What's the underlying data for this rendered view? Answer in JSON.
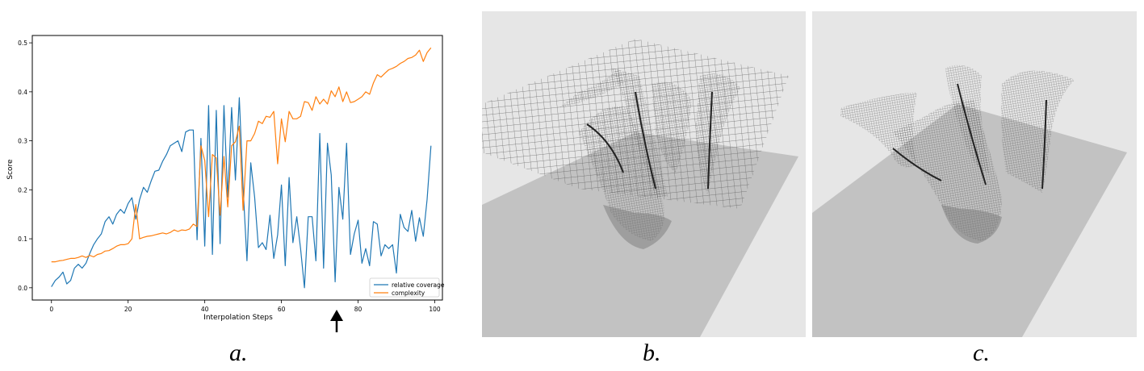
{
  "panel_labels": {
    "a": "a.",
    "b": "b.",
    "c": "c."
  },
  "chart_data": {
    "type": "line",
    "title": "",
    "xlabel": "Interpolation Steps",
    "ylabel": "Score",
    "xlim": [
      -5,
      102
    ],
    "ylim": [
      -0.025,
      0.515
    ],
    "xticks": [
      0,
      20,
      40,
      60,
      80,
      100
    ],
    "yticks": [
      0.0,
      0.1,
      0.2,
      0.3,
      0.4,
      0.5
    ],
    "ytick_labels": [
      "0.0",
      "0.1",
      "0.2",
      "0.3",
      "0.4",
      "0.5"
    ],
    "grid": false,
    "legend_position": "bottom-right",
    "marker_annotation": {
      "x": 75,
      "symbol": "arrow-up"
    },
    "series": [
      {
        "name": "relative coverage",
        "color": "#1f77b4",
        "x": [
          0,
          1,
          2,
          3,
          4,
          5,
          6,
          7,
          8,
          9,
          10,
          11,
          12,
          13,
          14,
          15,
          16,
          17,
          18,
          19,
          20,
          21,
          22,
          23,
          24,
          25,
          26,
          27,
          28,
          29,
          30,
          31,
          32,
          33,
          34,
          35,
          36,
          37,
          38,
          39,
          40,
          41,
          42,
          43,
          44,
          45,
          46,
          47,
          48,
          49,
          50,
          51,
          52,
          53,
          54,
          55,
          56,
          57,
          58,
          59,
          60,
          61,
          62,
          63,
          64,
          65,
          66,
          67,
          68,
          69,
          70,
          71,
          72,
          73,
          74,
          75,
          76,
          77,
          78,
          79,
          80,
          81,
          82,
          83,
          84,
          85,
          86,
          87,
          88,
          89,
          90,
          91,
          92,
          93,
          94,
          95,
          96,
          97,
          98,
          99
        ],
        "values": [
          0.002,
          0.015,
          0.022,
          0.032,
          0.008,
          0.015,
          0.04,
          0.048,
          0.04,
          0.05,
          0.07,
          0.088,
          0.1,
          0.11,
          0.135,
          0.145,
          0.13,
          0.15,
          0.16,
          0.152,
          0.172,
          0.184,
          0.14,
          0.18,
          0.205,
          0.195,
          0.218,
          0.238,
          0.24,
          0.258,
          0.272,
          0.29,
          0.295,
          0.3,
          0.278,
          0.318,
          0.322,
          0.322,
          0.098,
          0.305,
          0.085,
          0.372,
          0.068,
          0.362,
          0.09,
          0.372,
          0.185,
          0.368,
          0.22,
          0.388,
          0.205,
          0.055,
          0.255,
          0.185,
          0.082,
          0.092,
          0.078,
          0.148,
          0.06,
          0.108,
          0.21,
          0.045,
          0.225,
          0.092,
          0.145,
          0.08,
          0.0,
          0.145,
          0.145,
          0.055,
          0.315,
          0.04,
          0.295,
          0.23,
          0.012,
          0.205,
          0.14,
          0.295,
          0.068,
          0.11,
          0.138,
          0.05,
          0.08,
          0.045,
          0.135,
          0.13,
          0.065,
          0.088,
          0.08,
          0.088,
          0.03,
          0.15,
          0.123,
          0.115,
          0.158,
          0.095,
          0.143,
          0.105,
          0.18,
          0.29
        ],
        "label_text": "relative coverage"
      },
      {
        "name": "complexity",
        "color": "#ff7f0e",
        "x": [
          0,
          1,
          2,
          3,
          4,
          5,
          6,
          7,
          8,
          9,
          10,
          11,
          12,
          13,
          14,
          15,
          16,
          17,
          18,
          19,
          20,
          21,
          22,
          23,
          24,
          25,
          26,
          27,
          28,
          29,
          30,
          31,
          32,
          33,
          34,
          35,
          36,
          37,
          38,
          39,
          40,
          41,
          42,
          43,
          44,
          45,
          46,
          47,
          48,
          49,
          50,
          51,
          52,
          53,
          54,
          55,
          56,
          57,
          58,
          59,
          60,
          61,
          62,
          63,
          64,
          65,
          66,
          67,
          68,
          69,
          70,
          71,
          72,
          73,
          74,
          75,
          76,
          77,
          78,
          79,
          80,
          81,
          82,
          83,
          84,
          85,
          86,
          87,
          88,
          89,
          90,
          91,
          92,
          93,
          94,
          95,
          96,
          97,
          98,
          99
        ],
        "values": [
          0.053,
          0.053,
          0.055,
          0.056,
          0.058,
          0.06,
          0.06,
          0.062,
          0.065,
          0.062,
          0.066,
          0.063,
          0.068,
          0.07,
          0.075,
          0.076,
          0.08,
          0.085,
          0.088,
          0.088,
          0.09,
          0.1,
          0.17,
          0.1,
          0.103,
          0.105,
          0.106,
          0.108,
          0.11,
          0.112,
          0.11,
          0.113,
          0.118,
          0.115,
          0.118,
          0.117,
          0.12,
          0.13,
          0.125,
          0.29,
          0.26,
          0.145,
          0.272,
          0.265,
          0.148,
          0.268,
          0.165,
          0.29,
          0.298,
          0.33,
          0.158,
          0.3,
          0.3,
          0.315,
          0.34,
          0.335,
          0.35,
          0.348,
          0.36,
          0.253,
          0.345,
          0.298,
          0.36,
          0.345,
          0.345,
          0.35,
          0.38,
          0.378,
          0.362,
          0.39,
          0.375,
          0.385,
          0.375,
          0.402,
          0.39,
          0.41,
          0.38,
          0.4,
          0.378,
          0.38,
          0.385,
          0.39,
          0.4,
          0.395,
          0.418,
          0.435,
          0.43,
          0.438,
          0.445,
          0.448,
          0.452,
          0.458,
          0.462,
          0.468,
          0.47,
          0.475,
          0.485,
          0.462,
          0.48,
          0.49
        ],
        "label_text": "complexity"
      }
    ]
  }
}
